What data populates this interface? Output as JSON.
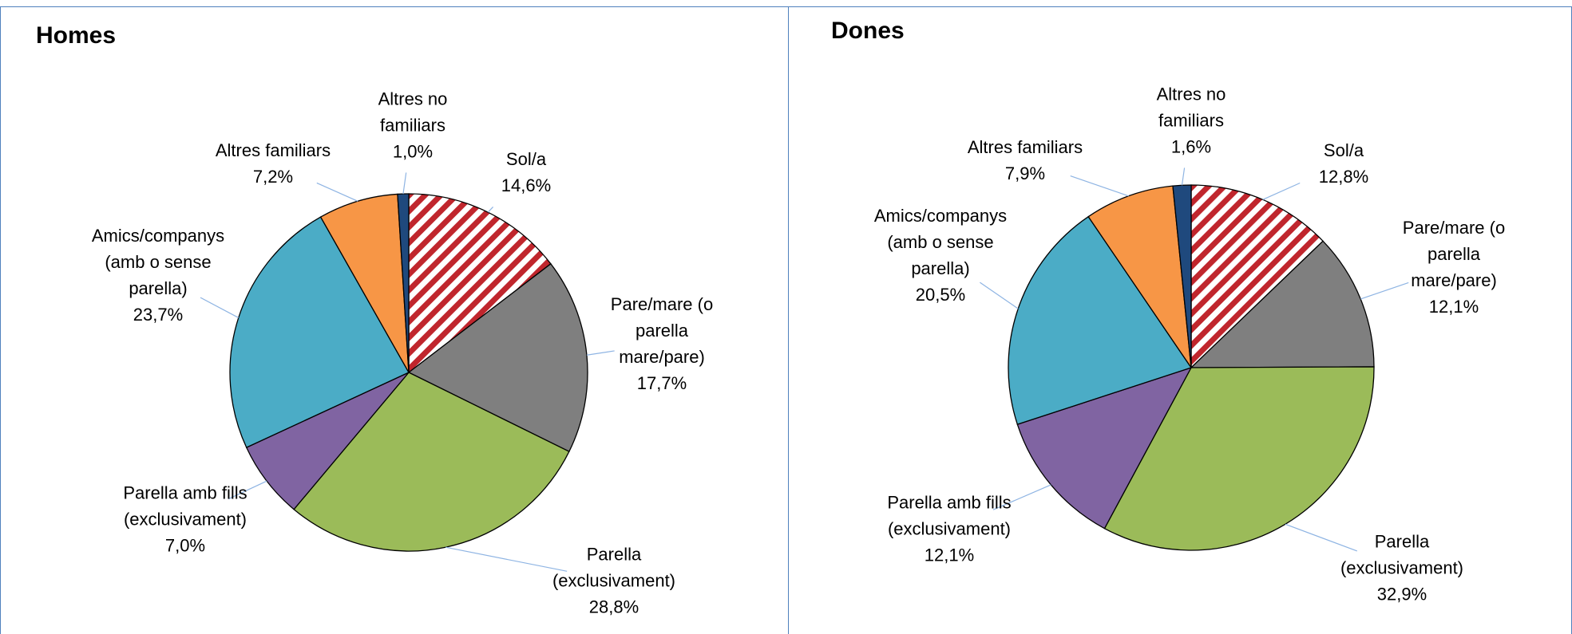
{
  "chart_data": [
    {
      "type": "pie",
      "title": "Homes",
      "categories": [
        "Sol/a",
        "Pare/mare (o parella mare/pare)",
        "Parella (exclusivament)",
        "Parella amb fills (exclusivament)",
        "Amics/companys (amb o sense parella)",
        "Altres familiars",
        "Altres no familiars"
      ],
      "values": [
        14.6,
        17.7,
        28.8,
        7.0,
        23.7,
        7.2,
        1.0
      ],
      "value_labels": [
        "14,6%",
        "17,7%",
        "28,8%",
        "7,0%",
        "23,7%",
        "7,2%",
        "1,0%"
      ],
      "colors": [
        "hatch",
        "#7f7f7f",
        "#9bbb59",
        "#8064a2",
        "#4bacc6",
        "#f79646",
        "#1f497d"
      ]
    },
    {
      "type": "pie",
      "title": "Dones",
      "categories": [
        "Sol/a",
        "Pare/mare (o parella mare/pare)",
        "Parella (exclusivament)",
        "Parella amb fills (exclusivament)",
        "Amics/companys (amb o sense parella)",
        "Altres familiars",
        "Altres no familiars"
      ],
      "values": [
        12.8,
        12.1,
        32.9,
        12.1,
        20.5,
        7.9,
        1.6
      ],
      "value_labels": [
        "12,8%",
        "12,1%",
        "32,9%",
        "12,1%",
        "20,5%",
        "7,9%",
        "1,6%"
      ],
      "colors": [
        "hatch",
        "#7f7f7f",
        "#9bbb59",
        "#8064a2",
        "#4bacc6",
        "#f79646",
        "#1f497d"
      ]
    }
  ]
}
